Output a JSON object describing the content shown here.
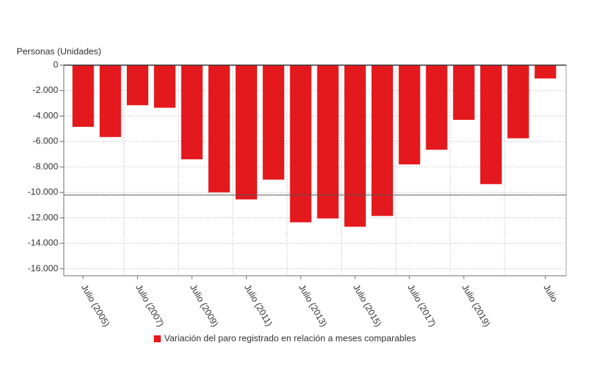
{
  "chart_data": {
    "type": "bar",
    "y_axis_label": "Personas (Unidades)",
    "categories": [
      "Julio (2005)",
      null,
      "Julio (2007)",
      null,
      "Julio (2009)",
      null,
      "Julio (2011)",
      null,
      "Julio (2013)",
      null,
      "Julio (2015)",
      null,
      "Julio (2017)",
      null,
      "Julio (2019)",
      null,
      null,
      "Julio"
    ],
    "series": [
      {
        "name": "Variación del paro registrado en relación a meses comparables",
        "color": "#e3191e",
        "values": [
          -4850,
          -5650,
          -3150,
          -3350,
          -7400,
          -10000,
          -10550,
          -9000,
          -12350,
          -12050,
          -12700,
          -11850,
          -7800,
          -6650,
          -4300,
          -9350,
          -5750,
          -1050
        ]
      }
    ],
    "reference_line": -10200,
    "ylim": [
      -16550,
      0
    ],
    "yticks": [
      0,
      {
        "value": -2000,
        "label": "-2.000"
      },
      {
        "value": -4000,
        "label": "-4.000"
      },
      {
        "value": -6000,
        "label": "-6.000"
      },
      {
        "value": -8000,
        "label": "-8.000"
      },
      {
        "value": -10000,
        "label": "-10.000"
      },
      {
        "value": -12000,
        "label": "-12.000"
      },
      {
        "value": -14000,
        "label": "-14.000"
      },
      {
        "value": -16000,
        "label": "-16.000"
      }
    ],
    "grid": true,
    "legend": "bottom"
  }
}
